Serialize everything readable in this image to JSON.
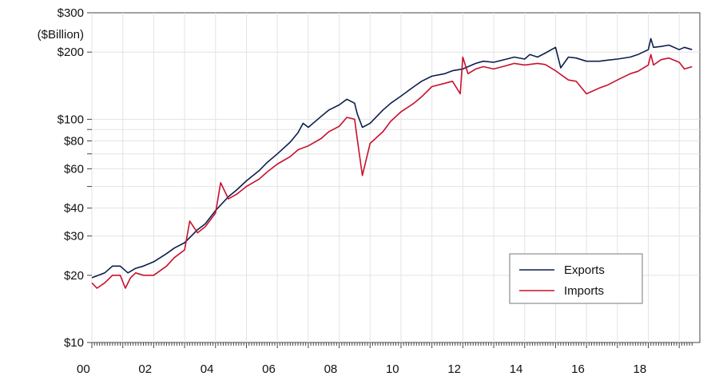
{
  "chart_data": {
    "type": "line",
    "title": "",
    "xlabel": "",
    "ylabel": "($Billion)",
    "y_scale": "log",
    "ylim": [
      10,
      300
    ],
    "xlim": [
      "2000-01",
      "2019-06"
    ],
    "y_ticks": [
      {
        "value": 10,
        "label": "$10"
      },
      {
        "value": 20,
        "label": "$20"
      },
      {
        "value": 30,
        "label": "$30"
      },
      {
        "value": 40,
        "label": "$40"
      },
      {
        "value": 60,
        "label": "$60"
      },
      {
        "value": 80,
        "label": "$80"
      },
      {
        "value": 100,
        "label": "$100"
      },
      {
        "value": 200,
        "label": "$200"
      },
      {
        "value": 300,
        "label": "$300"
      }
    ],
    "y_minor_gridlines": [
      50,
      70,
      90
    ],
    "x_tick_labels": [
      {
        "date": "2000-01",
        "label": "00"
      },
      {
        "date": "2002-01",
        "label": "02"
      },
      {
        "date": "2004-01",
        "label": "04"
      },
      {
        "date": "2006-01",
        "label": "06"
      },
      {
        "date": "2008-01",
        "label": "08"
      },
      {
        "date": "2010-01",
        "label": "10"
      },
      {
        "date": "2012-01",
        "label": "12"
      },
      {
        "date": "2014-01",
        "label": "14"
      },
      {
        "date": "2016-01",
        "label": "16"
      },
      {
        "date": "2018-01",
        "label": "18"
      }
    ],
    "grid": true,
    "legend_position": "bottom-right",
    "series": [
      {
        "name": "Exports",
        "color": "#0b1f4d",
        "points": [
          [
            "2000-01",
            19.5
          ],
          [
            "2000-06",
            20.5
          ],
          [
            "2000-09",
            22
          ],
          [
            "2000-12",
            22
          ],
          [
            "2001-03",
            20.5
          ],
          [
            "2001-06",
            21.5
          ],
          [
            "2001-09",
            22
          ],
          [
            "2002-01",
            23
          ],
          [
            "2002-06",
            25
          ],
          [
            "2002-09",
            26.5
          ],
          [
            "2003-01",
            28
          ],
          [
            "2003-06",
            32
          ],
          [
            "2003-09",
            34
          ],
          [
            "2004-01",
            39
          ],
          [
            "2004-06",
            45
          ],
          [
            "2004-09",
            48
          ],
          [
            "2005-01",
            53
          ],
          [
            "2005-06",
            59
          ],
          [
            "2005-09",
            64
          ],
          [
            "2006-01",
            70
          ],
          [
            "2006-06",
            79
          ],
          [
            "2006-09",
            87
          ],
          [
            "2006-11",
            96
          ],
          [
            "2007-01",
            92
          ],
          [
            "2007-06",
            103
          ],
          [
            "2007-09",
            110
          ],
          [
            "2008-01",
            116
          ],
          [
            "2008-04",
            123
          ],
          [
            "2008-07",
            118
          ],
          [
            "2008-08",
            106
          ],
          [
            "2008-10",
            92
          ],
          [
            "2009-01",
            96
          ],
          [
            "2009-06",
            110
          ],
          [
            "2009-09",
            118
          ],
          [
            "2010-01",
            127
          ],
          [
            "2010-06",
            140
          ],
          [
            "2010-09",
            148
          ],
          [
            "2011-01",
            156
          ],
          [
            "2011-06",
            160
          ],
          [
            "2011-09",
            165
          ],
          [
            "2012-01",
            168
          ],
          [
            "2012-06",
            178
          ],
          [
            "2012-09",
            182
          ],
          [
            "2013-01",
            180
          ],
          [
            "2013-06",
            186
          ],
          [
            "2013-09",
            190
          ],
          [
            "2014-01",
            186
          ],
          [
            "2014-03",
            195
          ],
          [
            "2014-06",
            190
          ],
          [
            "2014-09",
            198
          ],
          [
            "2015-01",
            210
          ],
          [
            "2015-03",
            170
          ],
          [
            "2015-06",
            190
          ],
          [
            "2015-09",
            188
          ],
          [
            "2016-01",
            182
          ],
          [
            "2016-06",
            182
          ],
          [
            "2016-09",
            184
          ],
          [
            "2017-01",
            186
          ],
          [
            "2017-06",
            190
          ],
          [
            "2017-09",
            195
          ],
          [
            "2018-01",
            205
          ],
          [
            "2018-02",
            230
          ],
          [
            "2018-03",
            210
          ],
          [
            "2018-06",
            212
          ],
          [
            "2018-09",
            215
          ],
          [
            "2019-01",
            205
          ],
          [
            "2019-03",
            210
          ],
          [
            "2019-06",
            205
          ]
        ]
      },
      {
        "name": "Imports",
        "color": "#c8102e",
        "points": [
          [
            "2000-01",
            18.5
          ],
          [
            "2000-03",
            17.5
          ],
          [
            "2000-06",
            18.5
          ],
          [
            "2000-09",
            20
          ],
          [
            "2000-12",
            20
          ],
          [
            "2001-02",
            17.5
          ],
          [
            "2001-04",
            19.5
          ],
          [
            "2001-06",
            20.5
          ],
          [
            "2001-09",
            20
          ],
          [
            "2002-01",
            20
          ],
          [
            "2002-06",
            22
          ],
          [
            "2002-09",
            24
          ],
          [
            "2003-01",
            26
          ],
          [
            "2003-03",
            35
          ],
          [
            "2003-06",
            31
          ],
          [
            "2003-09",
            33
          ],
          [
            "2004-01",
            38
          ],
          [
            "2004-03",
            52
          ],
          [
            "2004-06",
            44
          ],
          [
            "2004-09",
            46
          ],
          [
            "2005-01",
            50
          ],
          [
            "2005-06",
            54
          ],
          [
            "2005-09",
            58
          ],
          [
            "2006-01",
            63
          ],
          [
            "2006-06",
            68
          ],
          [
            "2006-09",
            73
          ],
          [
            "2007-01",
            76
          ],
          [
            "2007-06",
            82
          ],
          [
            "2007-09",
            88
          ],
          [
            "2008-01",
            93
          ],
          [
            "2008-04",
            102
          ],
          [
            "2008-07",
            100
          ],
          [
            "2008-08",
            82
          ],
          [
            "2008-10",
            56
          ],
          [
            "2009-01",
            78
          ],
          [
            "2009-06",
            88
          ],
          [
            "2009-09",
            98
          ],
          [
            "2010-01",
            108
          ],
          [
            "2010-06",
            118
          ],
          [
            "2010-09",
            126
          ],
          [
            "2011-01",
            140
          ],
          [
            "2011-06",
            145
          ],
          [
            "2011-09",
            148
          ],
          [
            "2011-12",
            130
          ],
          [
            "2012-01",
            190
          ],
          [
            "2012-03",
            160
          ],
          [
            "2012-06",
            168
          ],
          [
            "2012-09",
            172
          ],
          [
            "2013-01",
            168
          ],
          [
            "2013-06",
            174
          ],
          [
            "2013-09",
            178
          ],
          [
            "2014-01",
            175
          ],
          [
            "2014-06",
            178
          ],
          [
            "2014-09",
            176
          ],
          [
            "2015-01",
            165
          ],
          [
            "2015-06",
            150
          ],
          [
            "2015-09",
            148
          ],
          [
            "2016-01",
            130
          ],
          [
            "2016-06",
            138
          ],
          [
            "2016-09",
            142
          ],
          [
            "2017-01",
            150
          ],
          [
            "2017-06",
            160
          ],
          [
            "2017-09",
            164
          ],
          [
            "2018-01",
            175
          ],
          [
            "2018-02",
            195
          ],
          [
            "2018-03",
            175
          ],
          [
            "2018-06",
            185
          ],
          [
            "2018-09",
            188
          ],
          [
            "2019-01",
            180
          ],
          [
            "2019-03",
            168
          ],
          [
            "2019-06",
            172
          ]
        ]
      }
    ]
  }
}
